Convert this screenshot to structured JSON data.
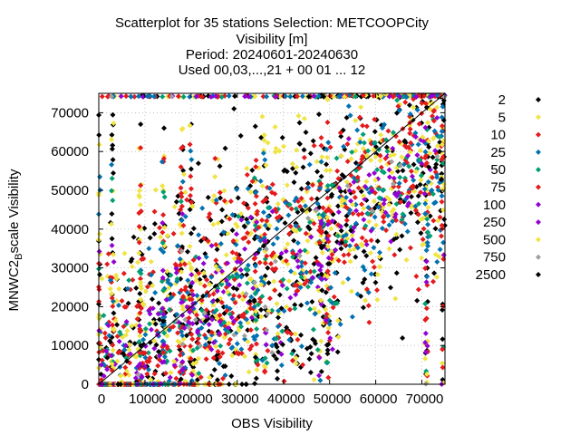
{
  "chart_data": {
    "type": "scatter",
    "title_lines": [
      "Scatterplot for   35 stations Selection: METCOOPCity",
      "Visibility [m]",
      "Period: 20240601-20240630",
      "Used 00,03,...,21 + 00 01 ... 12"
    ],
    "xlabel": "OBS Visibility",
    "ylabel_parts": [
      "MNWC2",
      "B",
      "scale Visibility"
    ],
    "xlim": [
      0,
      75000
    ],
    "ylim": [
      0,
      75000
    ],
    "x_ticks": [
      0,
      10000,
      20000,
      30000,
      40000,
      50000,
      60000,
      70000
    ],
    "y_ticks": [
      0,
      10000,
      20000,
      30000,
      40000,
      50000,
      60000,
      70000
    ],
    "x_tick_labels": [
      "0",
      "10000",
      "20000",
      "30000",
      "40000",
      "50000",
      "60000",
      "70000"
    ],
    "y_tick_labels": [
      "0",
      "10000",
      "20000",
      "30000",
      "40000",
      "50000",
      "60000",
      "70000"
    ],
    "grid": true,
    "diagonal": true,
    "legend_position": "right",
    "series": [
      {
        "name": "2",
        "color": "#000000",
        "coverage": 0.95
      },
      {
        "name": "5",
        "color": "#f0e442",
        "coverage": 0.85
      },
      {
        "name": "10",
        "color": "#e41a1c",
        "coverage": 0.7
      },
      {
        "name": "25",
        "color": "#0072b2",
        "coverage": 0.55
      },
      {
        "name": "50",
        "color": "#009e73",
        "coverage": 0.3
      },
      {
        "name": "75",
        "color": "#e41a1c",
        "coverage": 0.25
      },
      {
        "name": "100",
        "color": "#9400d3",
        "coverage": 0.2
      },
      {
        "name": "250",
        "color": "#9400d3",
        "coverage": 0.15
      },
      {
        "name": "500",
        "color": "#f0e442",
        "coverage": 0.1
      },
      {
        "name": "750",
        "color": "#a0a0a0",
        "coverage": 0.05
      },
      {
        "name": "2500",
        "color": "#000000",
        "coverage": 0.05
      }
    ]
  }
}
